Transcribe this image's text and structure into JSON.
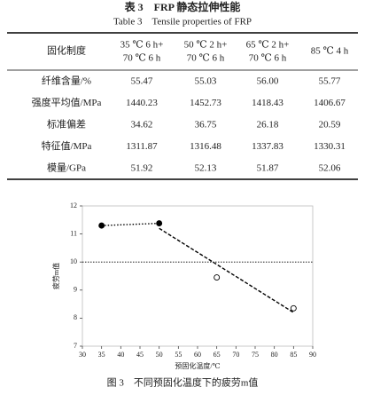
{
  "table": {
    "title_cn": "表 3　FRP 静态拉伸性能",
    "title_en": "Table 3　Tensile properties of FRP",
    "header": [
      "固化制度",
      [
        "35 ℃ 6 h+",
        "70 ℃ 6 h"
      ],
      [
        "50 ℃ 2 h+",
        "70 ℃ 6 h"
      ],
      [
        "65 ℃ 2 h+",
        "70 ℃ 6 h"
      ],
      "85 ℃ 4 h"
    ],
    "rows": [
      [
        "纤维含量/%",
        "55.47",
        "55.03",
        "56.00",
        "55.77"
      ],
      [
        "强度平均值/MPa",
        "1440.23",
        "1452.73",
        "1418.43",
        "1406.67"
      ],
      [
        "标准偏差",
        "34.62",
        "36.75",
        "26.18",
        "20.59"
      ],
      [
        "特征值/MPa",
        "1311.87",
        "1316.48",
        "1337.83",
        "1330.31"
      ],
      [
        "模量/GPa",
        "51.92",
        "52.13",
        "51.87",
        "52.06"
      ]
    ]
  },
  "chart_data": {
    "type": "scatter",
    "xlabel": "预固化温度/℃",
    "ylabel": "疲劳m值",
    "xlim": [
      30,
      90
    ],
    "xticks": [
      30,
      35,
      40,
      45,
      50,
      55,
      60,
      65,
      70,
      75,
      80,
      85,
      90
    ],
    "ylim": [
      7,
      12
    ],
    "yticks": [
      7,
      8,
      9,
      10,
      11,
      12
    ],
    "series": [
      {
        "marker": "filled",
        "line": "dotted",
        "color": "#000000",
        "x": [
          35,
          50
        ],
        "values": [
          11.3,
          11.38
        ]
      },
      {
        "marker": "open",
        "color": "#000000",
        "x": [
          65,
          85
        ],
        "values": [
          9.45,
          8.35
        ]
      },
      {
        "marker": "none",
        "line": "dashed",
        "color": "#000000",
        "x": [
          50,
          85
        ],
        "values": [
          11.2,
          8.2
        ]
      }
    ],
    "hline": 10,
    "caption": "图 3　不同预固化温度下的疲劳m值"
  }
}
